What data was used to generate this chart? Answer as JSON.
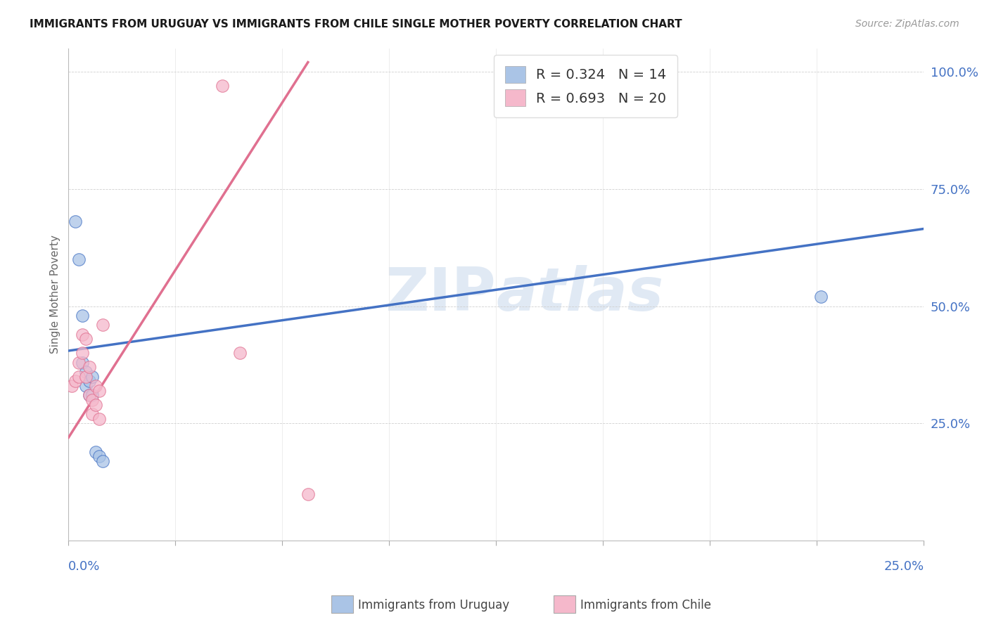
{
  "title": "IMMIGRANTS FROM URUGUAY VS IMMIGRANTS FROM CHILE SINGLE MOTHER POVERTY CORRELATION CHART",
  "source": "Source: ZipAtlas.com",
  "ylabel": "Single Mother Poverty",
  "legend_label1": "Immigrants from Uruguay",
  "legend_label2": "Immigrants from Chile",
  "R_uruguay": 0.324,
  "N_uruguay": 14,
  "R_chile": 0.693,
  "N_chile": 20,
  "color_uruguay": "#aac4e6",
  "color_chile": "#f5b8cb",
  "line_color_uruguay": "#4472c4",
  "line_color_chile": "#e07090",
  "accent_color": "#4472c4",
  "watermark_color": "#c8d8ec",
  "uruguay_x": [
    0.002,
    0.003,
    0.004,
    0.004,
    0.005,
    0.005,
    0.006,
    0.006,
    0.007,
    0.007,
    0.008,
    0.009,
    0.22,
    0.01
  ],
  "uruguay_y": [
    0.68,
    0.6,
    0.48,
    0.38,
    0.36,
    0.33,
    0.34,
    0.31,
    0.31,
    0.35,
    0.19,
    0.18,
    0.52,
    0.17
  ],
  "chile_x": [
    0.001,
    0.002,
    0.003,
    0.003,
    0.004,
    0.004,
    0.005,
    0.005,
    0.006,
    0.006,
    0.007,
    0.007,
    0.008,
    0.008,
    0.009,
    0.009,
    0.01,
    0.045,
    0.05,
    0.07
  ],
  "chile_y": [
    0.33,
    0.34,
    0.35,
    0.38,
    0.44,
    0.4,
    0.43,
    0.35,
    0.37,
    0.31,
    0.3,
    0.27,
    0.33,
    0.29,
    0.32,
    0.26,
    0.46,
    0.97,
    0.4,
    0.1
  ],
  "line_uruguay_x0": 0.0,
  "line_uruguay_y0": 0.405,
  "line_uruguay_x1": 0.25,
  "line_uruguay_y1": 0.665,
  "line_chile_x0": 0.0,
  "line_chile_y0": 0.22,
  "line_chile_x1": 0.07,
  "line_chile_y1": 1.02,
  "xmin": 0.0,
  "xmax": 0.25,
  "ymin": 0.0,
  "ymax": 1.05
}
